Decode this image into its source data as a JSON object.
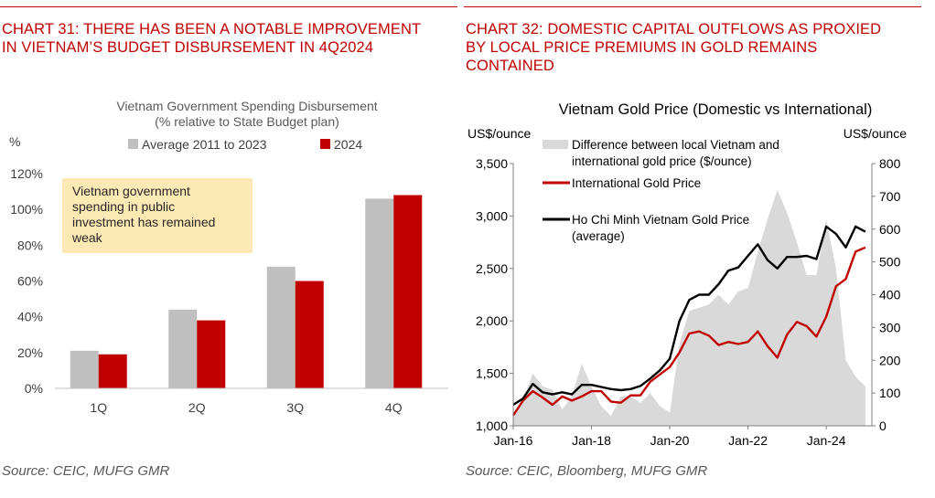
{
  "left": {
    "heading_line1": "CHART 31: THERE HAS BEEN A NOTABLE IMPROVEMENT",
    "heading_line2": "IN VIETNAM’S BUDGET DISBURSEMENT IN 4Q2024",
    "source": "Source: CEIC, MUFG GMR"
  },
  "right": {
    "heading_line1": "CHART 32: DOMESTIC CAPITAL OUTFLOWS AS PROXIED",
    "heading_line2": "BY LOCAL PRICE PREMIUMS IN GOLD REMAINS",
    "heading_line3": "CONTAINED",
    "source": "Source: CEIC, Bloomberg, MUFG GMR"
  },
  "colors": {
    "accent": "#c00000",
    "grey_bar": "#bfbfbf",
    "red_bar": "#c00000",
    "callout_bg": "#fde9b3",
    "premium_fill": "#d9d9d9",
    "black_line": "#000000"
  },
  "chart_data": [
    {
      "type": "bar",
      "title": "Vietnam Government Spending Disbursement",
      "subtitle": "(% relative to State Budget plan)",
      "ylabel": "%",
      "categories": [
        "1Q",
        "2Q",
        "3Q",
        "4Q"
      ],
      "series": [
        {
          "name": "Average 2011 to 2023",
          "values": [
            21,
            44,
            68,
            106
          ]
        },
        {
          "name": "2024",
          "values": [
            19,
            38,
            60,
            108
          ]
        }
      ],
      "ylim": [
        0,
        120
      ],
      "yticks": [
        "0%",
        "20%",
        "40%",
        "60%",
        "80%",
        "100%",
        "120%"
      ],
      "annotation": [
        "Vietnam government",
        "spending in public",
        "investment has remained",
        "weak"
      ],
      "legend_placement": "top-center",
      "grid": false
    },
    {
      "type": "line",
      "title": "Vietnam Gold Price (Domestic vs International)",
      "ylabel_left": "US$/ounce",
      "ylabel_right": "US$/ounce",
      "x": [
        "2016-01",
        "2016-04",
        "2016-07",
        "2016-10",
        "2017-01",
        "2017-04",
        "2017-07",
        "2017-10",
        "2018-01",
        "2018-04",
        "2018-07",
        "2018-10",
        "2019-01",
        "2019-04",
        "2019-07",
        "2019-10",
        "2020-01",
        "2020-04",
        "2020-07",
        "2020-10",
        "2021-01",
        "2021-04",
        "2021-07",
        "2021-10",
        "2022-01",
        "2022-04",
        "2022-07",
        "2022-10",
        "2023-01",
        "2023-04",
        "2023-07",
        "2023-10",
        "2024-01",
        "2024-04",
        "2024-07",
        "2024-10",
        "2025-01"
      ],
      "xticks": [
        "Jan-16",
        "Jan-18",
        "Jan-20",
        "Jan-22",
        "Jan-24"
      ],
      "ylim_left": [
        1000,
        3500
      ],
      "yticks_left": [
        "1,000",
        "1,500",
        "2,000",
        "2,500",
        "3,000",
        "3,500"
      ],
      "ylim_right": [
        0,
        800
      ],
      "yticks_right": [
        "0",
        "100",
        "200",
        "300",
        "400",
        "500",
        "600",
        "700",
        "800"
      ],
      "series": [
        {
          "name": "Difference between local Vietnam and international gold price ($/ounce)",
          "axis": "right",
          "style": "area",
          "values": [
            40,
            80,
            160,
            120,
            110,
            50,
            90,
            190,
            120,
            60,
            30,
            90,
            90,
            70,
            100,
            60,
            40,
            250,
            350,
            360,
            370,
            400,
            370,
            410,
            420,
            530,
            630,
            720,
            650,
            560,
            460,
            460,
            630,
            480,
            200,
            150,
            120
          ]
        },
        {
          "name": "International Gold Price",
          "axis": "left",
          "style": "line",
          "values": [
            1100,
            1240,
            1330,
            1270,
            1200,
            1280,
            1240,
            1280,
            1330,
            1330,
            1230,
            1220,
            1290,
            1290,
            1420,
            1490,
            1560,
            1700,
            1880,
            1900,
            1860,
            1770,
            1800,
            1780,
            1800,
            1900,
            1760,
            1650,
            1870,
            1990,
            1950,
            1850,
            2040,
            2330,
            2400,
            2660,
            2700
          ]
        },
        {
          "name": "Ho Chi Minh Vietnam Gold Price (average)",
          "axis": "left",
          "style": "line",
          "values": [
            1200,
            1260,
            1400,
            1320,
            1300,
            1320,
            1300,
            1390,
            1390,
            1370,
            1350,
            1340,
            1350,
            1380,
            1450,
            1530,
            1640,
            2000,
            2200,
            2250,
            2250,
            2350,
            2480,
            2510,
            2620,
            2730,
            2580,
            2500,
            2610,
            2610,
            2620,
            2590,
            2900,
            2830,
            2700,
            2900,
            2850
          ]
        }
      ],
      "legend_placement": "top-left",
      "grid": false
    }
  ]
}
